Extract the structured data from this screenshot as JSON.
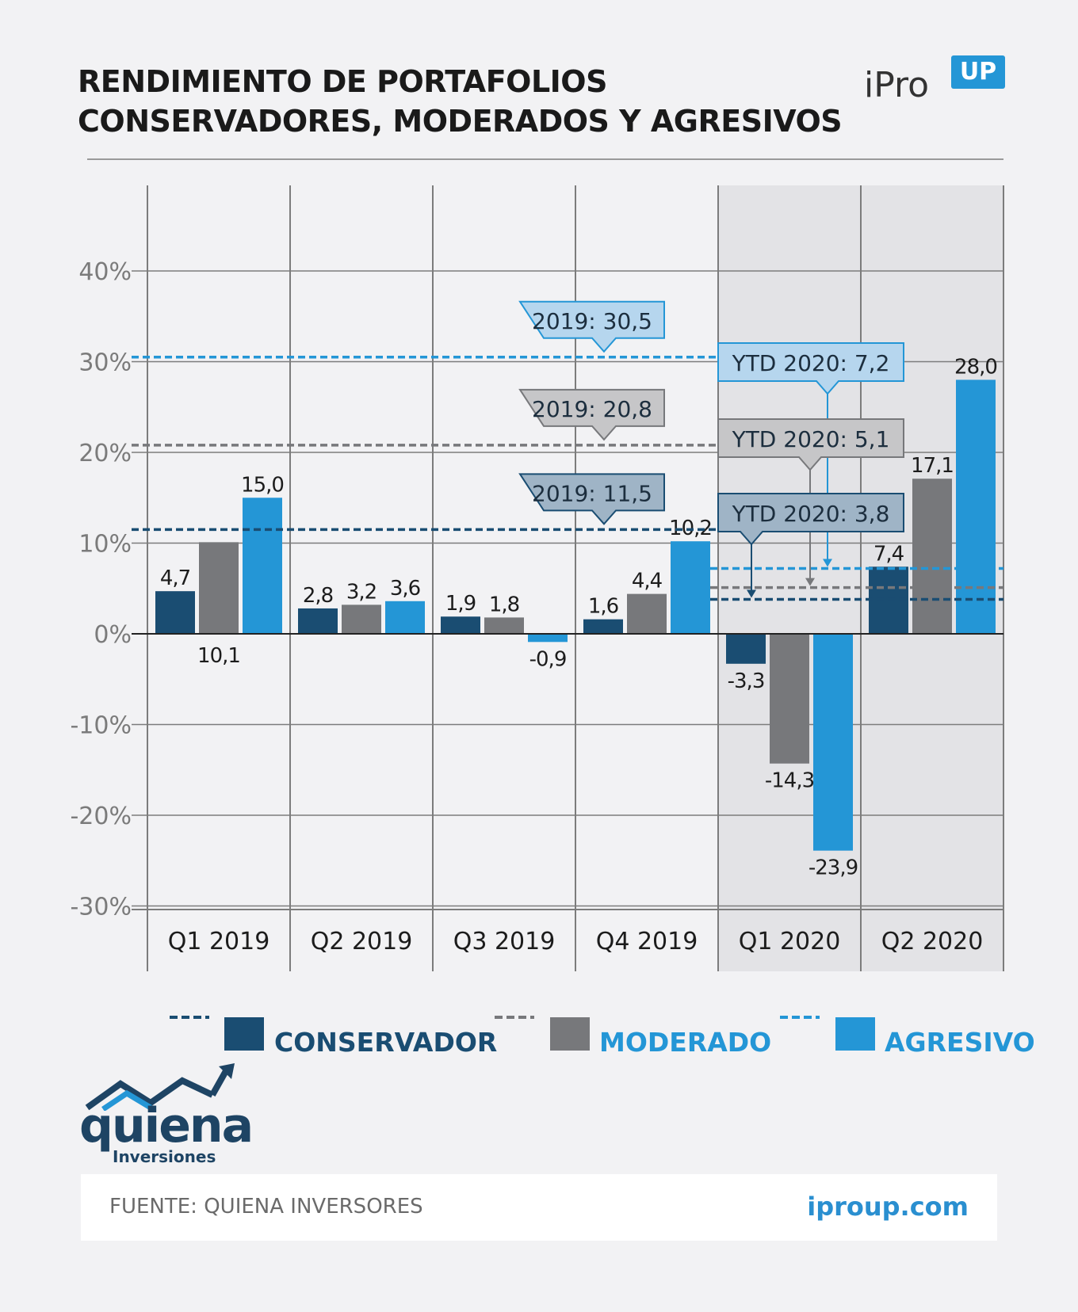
{
  "header": {
    "title_line1": "RENDIMIENTO DE PORTAFOLIOS",
    "title_line2": "CONSERVADORES, MODERADOS Y AGRESIVOS",
    "brand_name": "iPro",
    "brand_badge": "UP"
  },
  "colors": {
    "conservador": "#1a4d72",
    "moderado": "#77787b",
    "agresivo": "#2496d6",
    "shade": "#e3e3e6"
  },
  "chart_data": {
    "type": "bar",
    "categories": [
      "Q1 2019",
      "Q2 2019",
      "Q3 2019",
      "Q4 2019",
      "Q1 2020",
      "Q2 2020"
    ],
    "ylim": [
      -30,
      50
    ],
    "yticks": [
      -30,
      -20,
      -10,
      0,
      10,
      20,
      30,
      40
    ],
    "ytick_labels": [
      "-30%",
      "-20%",
      "-10%",
      "0%",
      "10%",
      "20%",
      "30%",
      "40%"
    ],
    "grid": true,
    "shaded_categories": [
      "Q1 2020",
      "Q2 2020"
    ],
    "series": [
      {
        "name": "CONSERVADOR",
        "values": [
          4.7,
          2.8,
          1.9,
          1.6,
          -3.3,
          7.4
        ],
        "labels": [
          "4,7",
          "2,8",
          "1,9",
          "1,6",
          "-3,3",
          "7,4"
        ]
      },
      {
        "name": "MODERADO",
        "values": [
          10.1,
          3.2,
          1.8,
          4.4,
          -14.3,
          17.1
        ],
        "labels": [
          "10,1",
          "3,2",
          "1,8",
          "4,4",
          "-14,3",
          "17,1"
        ]
      },
      {
        "name": "AGRESIVO",
        "values": [
          15.0,
          3.6,
          -0.9,
          10.2,
          -23.9,
          28.0
        ],
        "labels": [
          "15,0",
          "3,6",
          "-0,9",
          "10,2",
          "-23,9",
          "28,0"
        ]
      }
    ],
    "annotations_2019": [
      {
        "series": "AGRESIVO",
        "value": 30.5,
        "label": "2019: 30,5"
      },
      {
        "series": "MODERADO",
        "value": 20.8,
        "label": "2019: 20,8"
      },
      {
        "series": "CONSERVADOR",
        "value": 11.5,
        "label": "2019: 11,5"
      }
    ],
    "annotations_ytd2020": [
      {
        "series": "AGRESIVO",
        "value": 7.2,
        "label": "YTD 2020: 7,2"
      },
      {
        "series": "MODERADO",
        "value": 5.1,
        "label": "YTD 2020: 5,1"
      },
      {
        "series": "CONSERVADOR",
        "value": 3.8,
        "label": "YTD 2020: 3,8"
      }
    ],
    "legend": [
      "CONSERVADOR",
      "MODERADO",
      "AGRESIVO"
    ],
    "legend_position": "bottom"
  },
  "logo": {
    "name": "quiena",
    "sub": "Inversiones"
  },
  "footer": {
    "source": "FUENTE: QUIENA INVERSORES",
    "url": "iproup.com"
  }
}
